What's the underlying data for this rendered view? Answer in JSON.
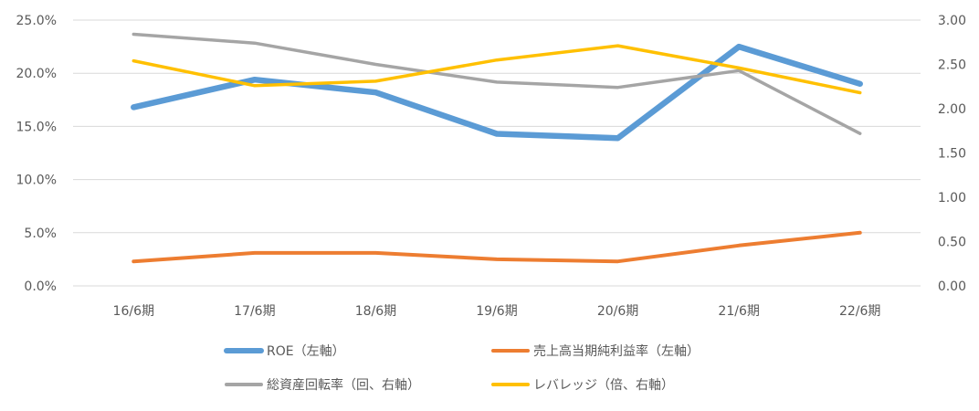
{
  "chart_data": {
    "type": "line",
    "categories": [
      "16/6期",
      "17/6期",
      "18/6期",
      "19/6期",
      "20/6期",
      "21/6期",
      "22/6期"
    ],
    "left_axis": {
      "ylim": [
        0,
        0.25
      ],
      "ticks": [
        0,
        0.05,
        0.1,
        0.15,
        0.2,
        0.25
      ],
      "tick_labels": [
        "0.0%",
        "5.0%",
        "10.0%",
        "15.0%",
        "20.0%",
        "25.0%"
      ]
    },
    "right_axis": {
      "ylim": [
        0,
        3.0
      ],
      "ticks": [
        0,
        0.5,
        1.0,
        1.5,
        2.0,
        2.5,
        3.0
      ],
      "tick_labels": [
        "0.00",
        "0.50",
        "1.00",
        "1.50",
        "2.00",
        "2.50",
        "3.00"
      ]
    },
    "grid": true,
    "legend_position": "bottom",
    "series": [
      {
        "name": "ROE（左軸）",
        "axis": "left",
        "color": "#5B9BD5",
        "values": [
          0.168,
          0.194,
          0.182,
          0.143,
          0.139,
          0.225,
          0.19
        ]
      },
      {
        "name": "売上高当期純利益率（左軸）",
        "axis": "left",
        "color": "#ED7D31",
        "values": [
          0.023,
          0.031,
          0.031,
          0.025,
          0.023,
          0.038,
          0.05
        ]
      },
      {
        "name": "総資産回転率（回、右軸）",
        "axis": "right",
        "color": "#A5A5A5",
        "values": [
          2.84,
          2.74,
          2.5,
          2.3,
          2.24,
          2.43,
          1.72
        ]
      },
      {
        "name": "レバレッジ（倍、右軸）",
        "axis": "right",
        "color": "#FFC000",
        "values": [
          2.54,
          2.26,
          2.31,
          2.55,
          2.71,
          2.46,
          2.18
        ]
      }
    ]
  }
}
